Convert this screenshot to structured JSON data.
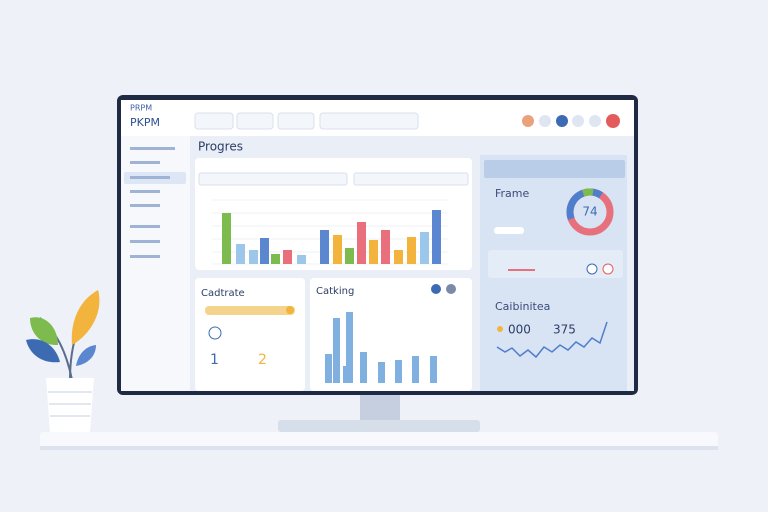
{
  "header": {
    "brand_top": "PRPM",
    "brand": "PKPM"
  },
  "progress_panel": {
    "title": "Progres"
  },
  "frame_panel": {
    "title": "Frame",
    "gauge_value": "74"
  },
  "left_card": {
    "title": "Cadtrate"
  },
  "chart_card": {
    "title": "Catking"
  },
  "bottom_panel": {
    "title": "Caibinitea",
    "stat_a": "000",
    "stat_b": "375"
  }
}
